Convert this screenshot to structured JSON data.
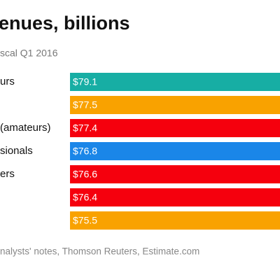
{
  "chart_data": {
    "type": "hbar",
    "title": "enues, billions",
    "subtitle": "scal Q1 2016",
    "source": "nalysts' notes, Thomson Reuters, Estimate.com",
    "categories": [
      "urs",
      null,
      "(amateurs)",
      "sionals",
      "ers",
      null,
      null
    ],
    "values": [
      79.1,
      77.5,
      77.4,
      76.8,
      76.6,
      76.4,
      75.5
    ],
    "value_labels": [
      "$79.1",
      "$77.5",
      "$77.4",
      "$76.8",
      "$76.6",
      "$76.4",
      "$75.5"
    ],
    "colors": [
      "#17aea4",
      "#f9a200",
      "#f5000d",
      "#1a86e8",
      "#f5000d",
      "#f5000d",
      "#f9a200"
    ]
  }
}
